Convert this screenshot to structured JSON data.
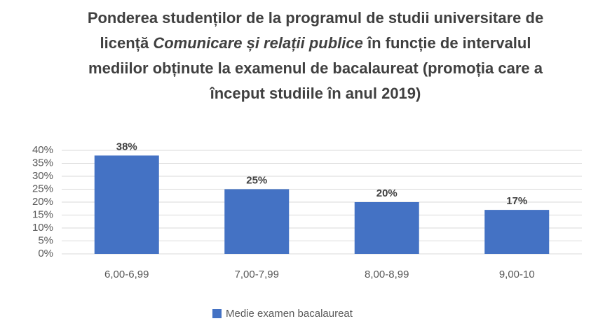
{
  "chart_data": {
    "type": "bar",
    "title": [
      "Ponderea studenților de la programul de studii universitare de licență ",
      "Comunicare și relații publice",
      " în funcție de intervalul mediilor obținute la examenul de bacalaureat (promoția care a început studiile în anul 2019)"
    ],
    "categories": [
      "6,00-6,99",
      "7,00-7,99",
      "8,00-8,99",
      "9,00-10"
    ],
    "series": [
      {
        "name": "Medie examen bacalaureat",
        "color": "#4472c4",
        "values": [
          38,
          25,
          20,
          17
        ],
        "value_labels": [
          "38%",
          "25%",
          "20%",
          "17%"
        ]
      }
    ],
    "ylim": [
      0,
      40
    ],
    "yticks": [
      {
        "value": 0,
        "label": "0%"
      },
      {
        "value": 5,
        "label": "5%"
      },
      {
        "value": 10,
        "label": "10%"
      },
      {
        "value": 15,
        "label": "15%"
      },
      {
        "value": 20,
        "label": "20%"
      },
      {
        "value": 25,
        "label": "25%"
      },
      {
        "value": 30,
        "label": "30%"
      },
      {
        "value": 35,
        "label": "35%"
      },
      {
        "value": 40,
        "label": "40%"
      }
    ],
    "grid": true,
    "legend": "bottom"
  }
}
